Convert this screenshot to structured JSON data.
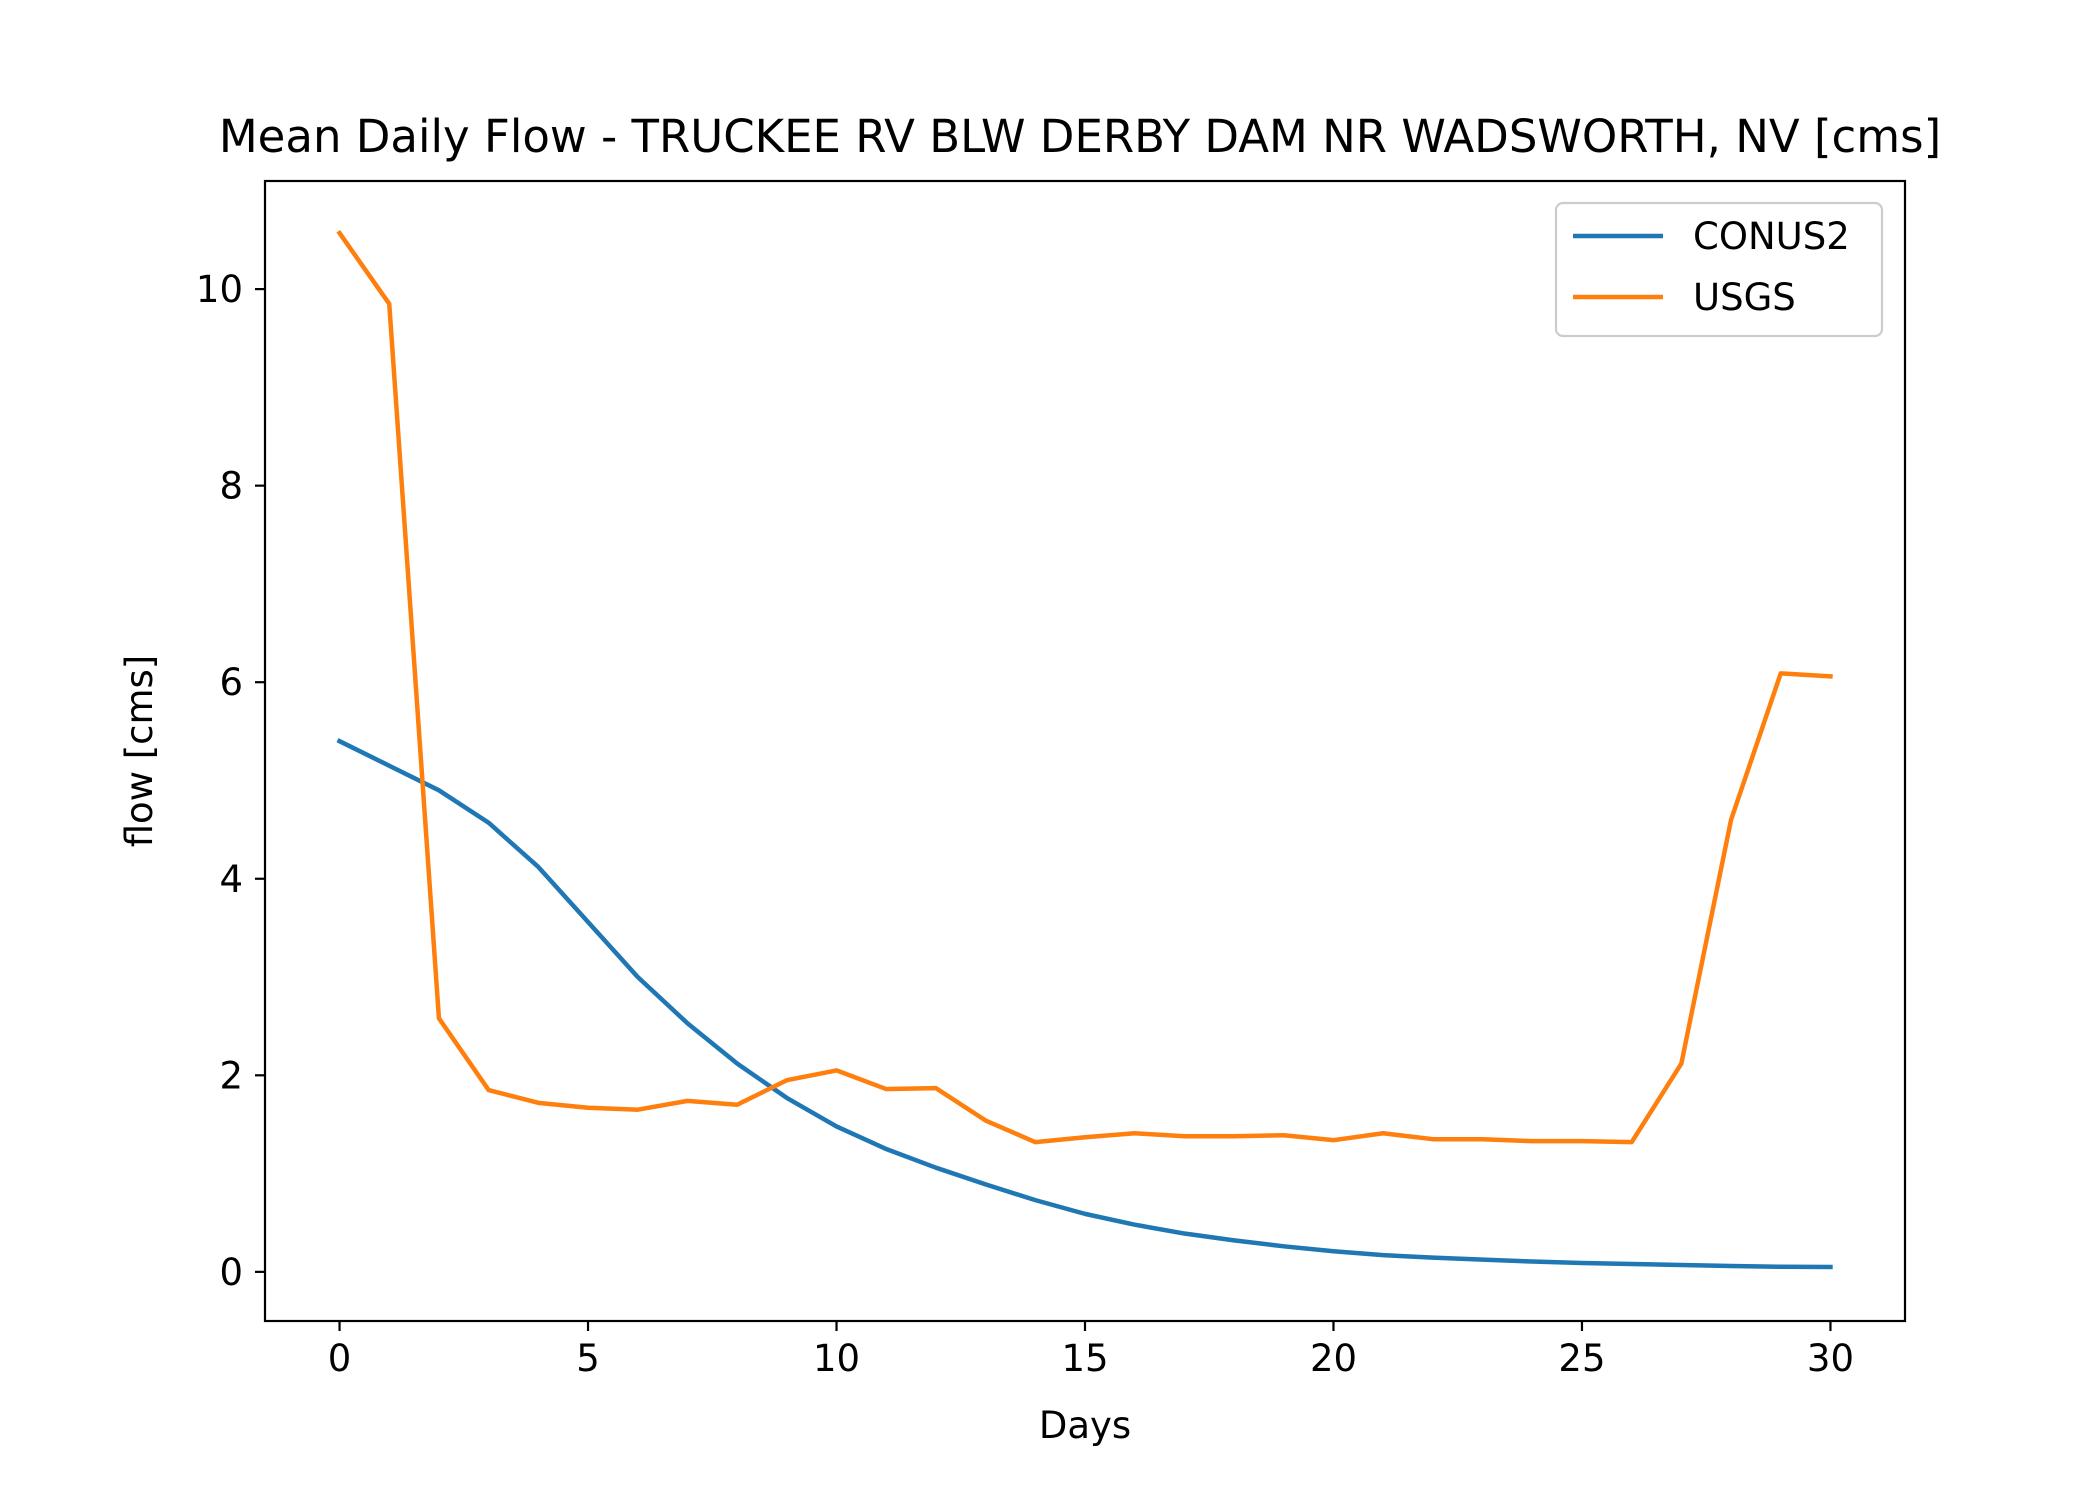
{
  "chart_data": {
    "type": "line",
    "title": "Mean Daily Flow - TRUCKEE RV BLW DERBY DAM NR WADSWORTH, NV [cms]",
    "xlabel": "Days",
    "ylabel": "flow [cms]",
    "xlim": [
      -1.5,
      31.5
    ],
    "ylim": [
      -0.5,
      11.1
    ],
    "xticks": [
      0,
      5,
      10,
      15,
      20,
      25,
      30
    ],
    "xtick_labels": [
      "0",
      "5",
      "10",
      "15",
      "20",
      "25",
      "30"
    ],
    "yticks": [
      0,
      2,
      4,
      6,
      8,
      10
    ],
    "ytick_labels": [
      "0",
      "2",
      "4",
      "6",
      "8",
      "10"
    ],
    "grid": false,
    "legend_placement": "upper-right",
    "x": [
      0,
      1,
      2,
      3,
      4,
      5,
      6,
      7,
      8,
      9,
      10,
      11,
      12,
      13,
      14,
      15,
      16,
      17,
      18,
      19,
      20,
      21,
      22,
      23,
      24,
      25,
      26,
      27,
      28,
      29,
      30
    ],
    "series": [
      {
        "name": "CONUS2",
        "color": "#1f77b4",
        "values": [
          5.4,
          5.15,
          4.9,
          4.57,
          4.12,
          3.56,
          3.0,
          2.53,
          2.12,
          1.77,
          1.48,
          1.25,
          1.06,
          0.89,
          0.73,
          0.59,
          0.48,
          0.39,
          0.32,
          0.26,
          0.21,
          0.17,
          0.145,
          0.125,
          0.105,
          0.09,
          0.08,
          0.07,
          0.06,
          0.052,
          0.05
        ]
      },
      {
        "name": "USGS",
        "color": "#ff7f0e",
        "values": [
          10.57,
          9.85,
          2.58,
          1.85,
          1.72,
          1.67,
          1.65,
          1.74,
          1.7,
          1.95,
          2.05,
          1.86,
          1.87,
          1.54,
          1.32,
          1.37,
          1.41,
          1.38,
          1.38,
          1.39,
          1.34,
          1.41,
          1.35,
          1.35,
          1.33,
          1.33,
          1.32,
          2.12,
          4.6,
          6.09,
          6.06
        ]
      }
    ]
  }
}
